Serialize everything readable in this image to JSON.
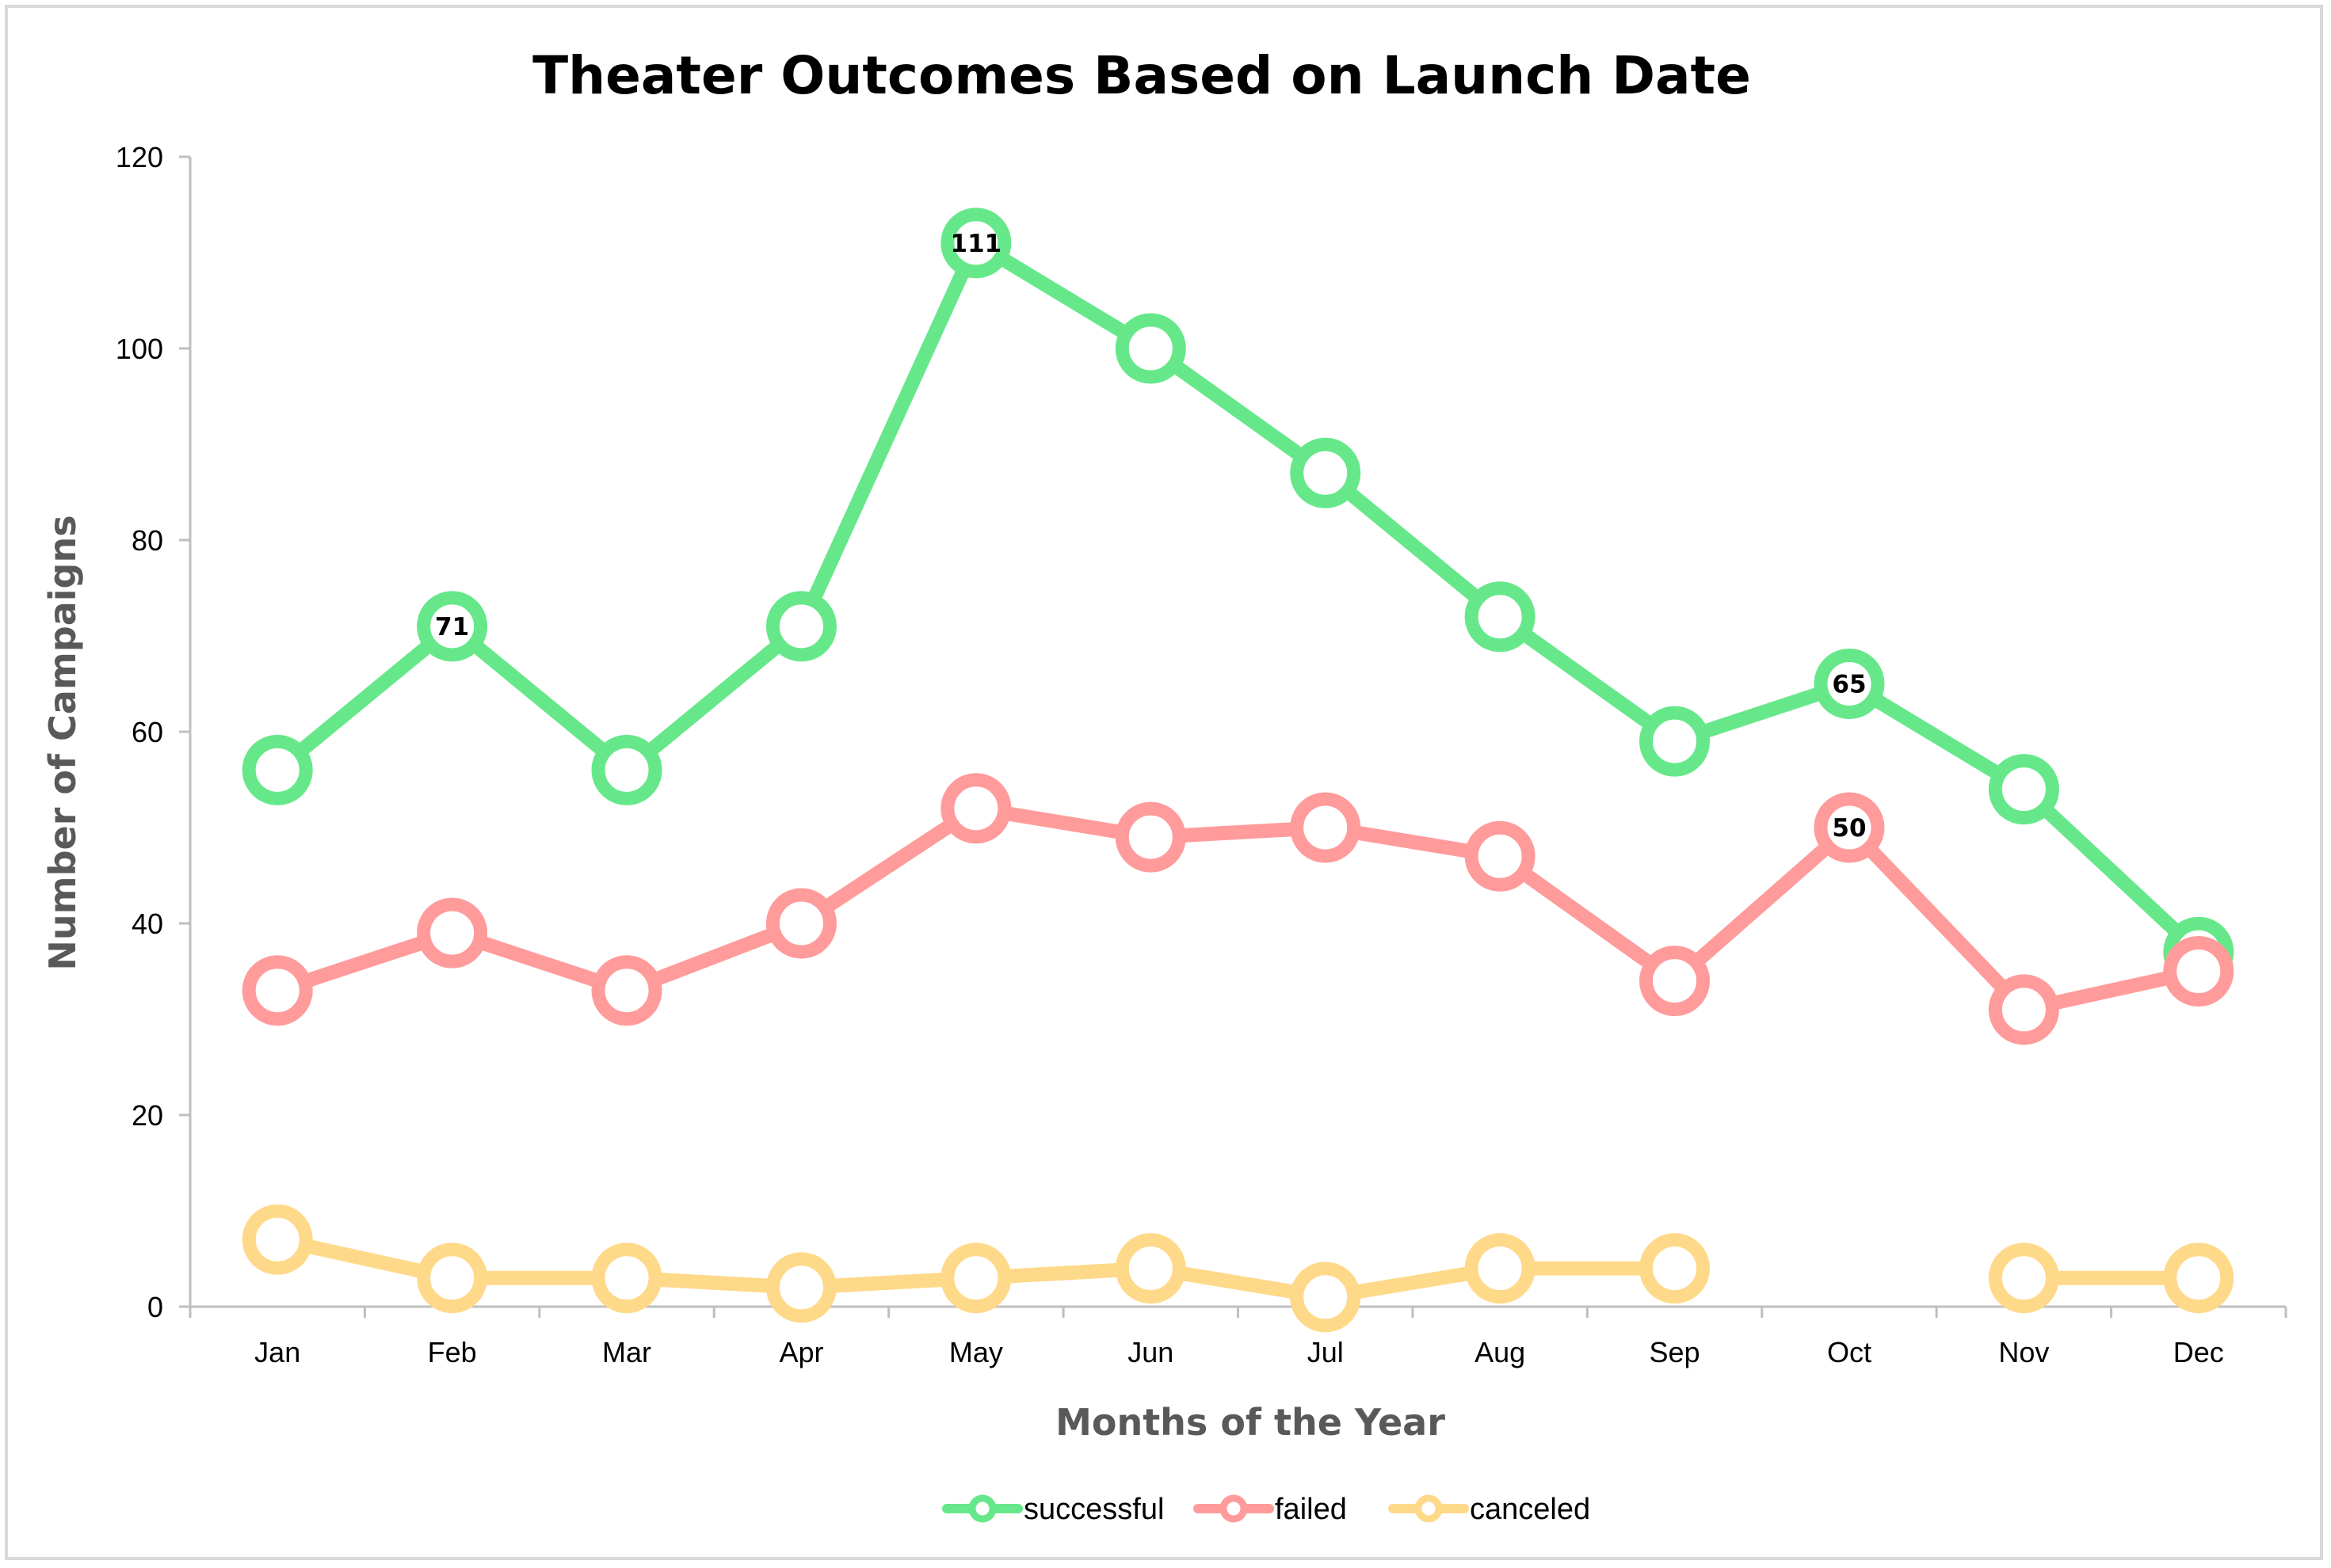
{
  "chart_data": {
    "type": "line",
    "title": "Theater Outcomes Based on Launch Date",
    "xlabel": "Months of the Year",
    "ylabel": "Number of Campaigns",
    "categories": [
      "Jan",
      "Feb",
      "Mar",
      "Apr",
      "May",
      "Jun",
      "Jul",
      "Aug",
      "Sep",
      "Oct",
      "Nov",
      "Dec"
    ],
    "ylim": [
      0,
      120
    ],
    "yticks": [
      0,
      20,
      40,
      60,
      80,
      100,
      120
    ],
    "grid": false,
    "legend_position": "bottom",
    "series": [
      {
        "name": "successful",
        "color": "#66e88a",
        "values": [
          56,
          71,
          56,
          71,
          111,
          100,
          87,
          72,
          59,
          65,
          54,
          37
        ],
        "data_labels": {
          "1": "71",
          "4": "111",
          "9": "65"
        }
      },
      {
        "name": "failed",
        "color": "#ff9b9b",
        "values": [
          33,
          39,
          33,
          40,
          52,
          49,
          50,
          47,
          34,
          50,
          31,
          35
        ],
        "data_labels": {
          "9": "50"
        }
      },
      {
        "name": "canceled",
        "color": "#ffd98a",
        "values": [
          7,
          3,
          3,
          2,
          3,
          4,
          1,
          4,
          4,
          null,
          3,
          3
        ],
        "data_labels": {}
      }
    ]
  }
}
